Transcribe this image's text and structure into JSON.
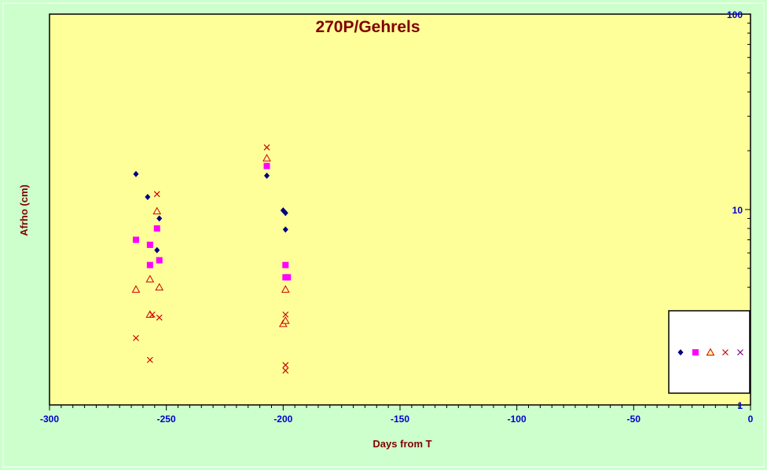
{
  "chart_data": {
    "type": "scatter",
    "title": "270P/Gehrels",
    "xlabel": "Days from T",
    "ylabel": "Afrho (cm)",
    "xlim": [
      -300,
      0
    ],
    "ylim": [
      1,
      100
    ],
    "y_scale": "log",
    "x_ticks": [
      "-300",
      "-250",
      "-200",
      "-150",
      "-100",
      "-50",
      "0"
    ],
    "x_tick_values": [
      -300,
      -250,
      -200,
      -150,
      -100,
      -50,
      0
    ],
    "y_ticks": [
      "1",
      "10",
      "100"
    ],
    "y_tick_values": [
      1,
      10,
      100
    ],
    "grid": false,
    "legend_position": "bottom-right",
    "colors": {
      "outer_bg": "#ccffcc",
      "plot_bg": "#ffff99",
      "title": "#800000",
      "axis_label": "#800000",
      "tick_label": "#0000cc"
    },
    "series": [
      {
        "marker": "diamond",
        "color": "#000080",
        "points": [
          [
            -263,
            15.2
          ],
          [
            -258,
            11.6
          ],
          [
            -254,
            6.2
          ],
          [
            -253,
            9.0
          ],
          [
            -207,
            14.9
          ],
          [
            -200,
            9.9
          ],
          [
            -199,
            9.6
          ],
          [
            -199,
            7.9
          ]
        ]
      },
      {
        "marker": "square",
        "color": "#ff00ff",
        "points": [
          [
            -263,
            7.0
          ],
          [
            -257,
            6.6
          ],
          [
            -257,
            5.2
          ],
          [
            -254,
            8.0
          ],
          [
            -253,
            5.5
          ],
          [
            -207,
            16.7
          ],
          [
            -199,
            5.2
          ],
          [
            -199,
            4.5
          ],
          [
            -198,
            4.5
          ]
        ]
      },
      {
        "marker": "triangle",
        "color": "#cc0000",
        "points": [
          [
            -263,
            3.9
          ],
          [
            -257,
            4.4
          ],
          [
            -257,
            2.9
          ],
          [
            -254,
            9.8
          ],
          [
            -253,
            4.0
          ],
          [
            -207,
            18.3
          ],
          [
            -200,
            2.6
          ],
          [
            -199,
            2.7
          ],
          [
            -199,
            3.9
          ]
        ]
      },
      {
        "marker": "x",
        "color": "#cc0000",
        "points": [
          [
            -263,
            2.2
          ],
          [
            -257,
            1.7
          ],
          [
            -256,
            2.9
          ],
          [
            -254,
            12.0
          ],
          [
            -253,
            2.8
          ],
          [
            -207,
            20.8
          ],
          [
            -199,
            2.9
          ],
          [
            -199,
            1.6
          ],
          [
            -199,
            1.5
          ]
        ]
      }
    ],
    "legend_markers": [
      {
        "marker": "diamond",
        "color": "#000080"
      },
      {
        "marker": "square",
        "color": "#ff00ff"
      },
      {
        "marker": "triangle",
        "color": "#cc0000"
      },
      {
        "marker": "x",
        "color": "#cc0000"
      },
      {
        "marker": "x",
        "color": "#800080"
      }
    ]
  }
}
